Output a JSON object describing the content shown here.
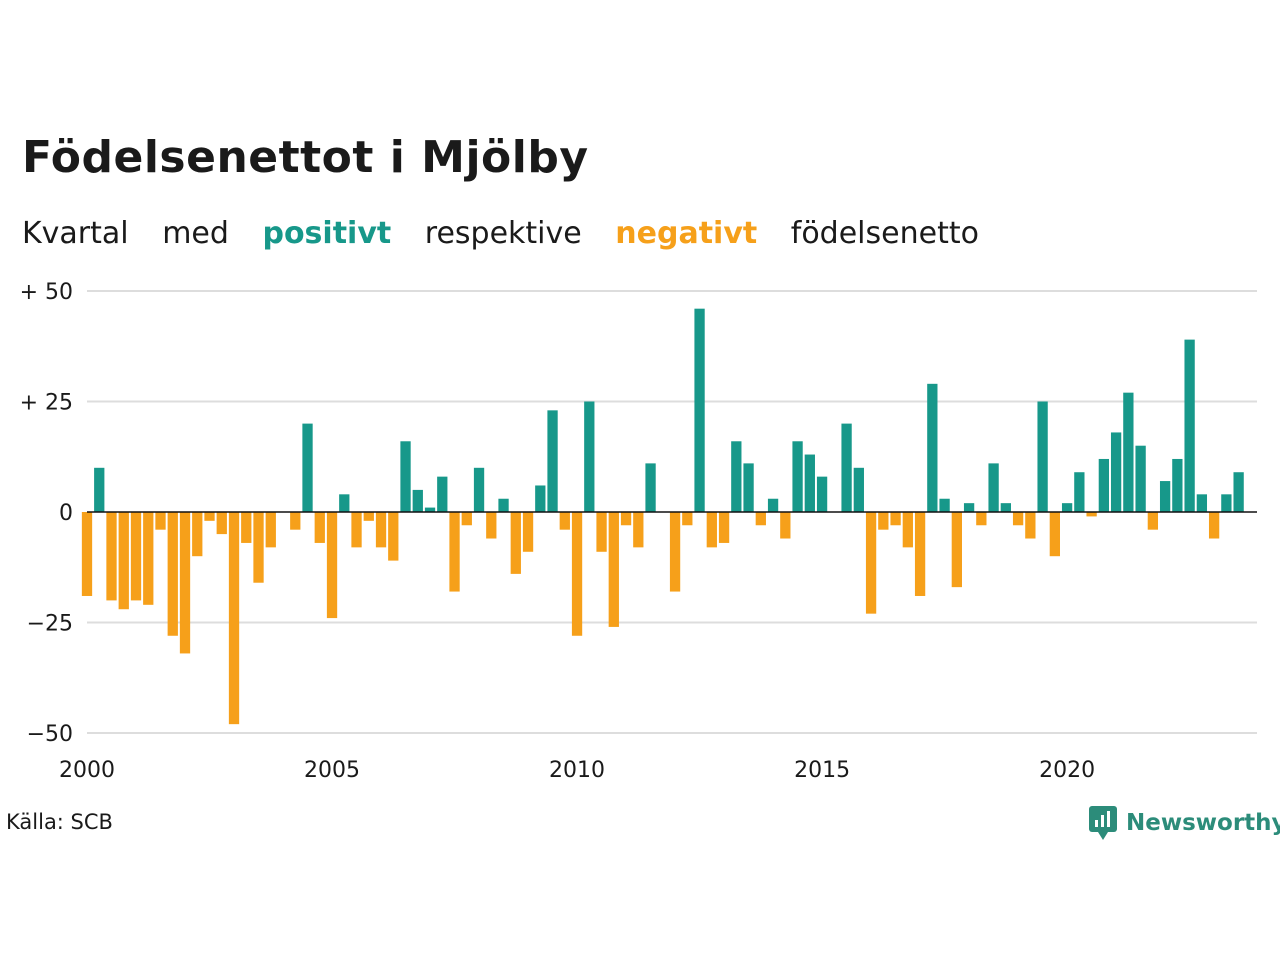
{
  "header": {
    "title": "Födelsenettot i Mjölby",
    "subtitle": {
      "w1": "Kvartal",
      "w2": "med",
      "positive": "positivt",
      "w3": "respektive",
      "negative": "negativt",
      "w4": "födelsenetto"
    }
  },
  "footer": {
    "source": "Källa: SCB",
    "brand": "Newsworthy",
    "brand_icon": "newsworthy-logo-icon"
  },
  "colors": {
    "positive": "#17988a",
    "negative": "#f6a01a",
    "grid": "#dddddd",
    "text": "#1a1a1a"
  },
  "chart_data": {
    "type": "bar",
    "title": "Födelsenettot i Mjölby",
    "frequency": "quarterly",
    "x_start": "2000 Q1",
    "xlim": [
      2000,
      2023.875
    ],
    "ylim": [
      -50,
      50
    ],
    "y_ticks": [
      {
        "value": 50,
        "label": "+ 50"
      },
      {
        "value": 25,
        "label": "+ 25"
      },
      {
        "value": 0,
        "label": "0"
      },
      {
        "value": -25,
        "label": "−25"
      },
      {
        "value": -50,
        "label": "−50"
      }
    ],
    "x_ticks": [
      {
        "value": 2000,
        "label": "2000"
      },
      {
        "value": 2005,
        "label": "2005"
      },
      {
        "value": 2010,
        "label": "2010"
      },
      {
        "value": 2015,
        "label": "2015"
      },
      {
        "value": 2020,
        "label": "2020"
      }
    ],
    "grid": true,
    "legend": "none",
    "values": [
      -19,
      10,
      -20,
      -22,
      -20,
      -21,
      -4,
      -28,
      -32,
      -10,
      -2,
      -5,
      -48,
      -7,
      -16,
      -8,
      0,
      -4,
      20,
      -7,
      -24,
      4,
      -8,
      -2,
      -8,
      -11,
      16,
      5,
      1,
      8,
      -18,
      -3,
      10,
      -6,
      3,
      -14,
      -9,
      6,
      23,
      -4,
      -28,
      25,
      -9,
      -26,
      -3,
      -8,
      11,
      0,
      -18,
      -3,
      46,
      -8,
      -7,
      16,
      11,
      -3,
      3,
      -6,
      16,
      13,
      8,
      0,
      20,
      10,
      -23,
      -4,
      -3,
      -8,
      -19,
      29,
      3,
      -17,
      2,
      -3,
      11,
      2,
      -3,
      -6,
      25,
      -10,
      2,
      9,
      -1,
      12,
      18,
      27,
      15,
      -4,
      7,
      12,
      39,
      4,
      -6,
      4,
      9
    ]
  }
}
